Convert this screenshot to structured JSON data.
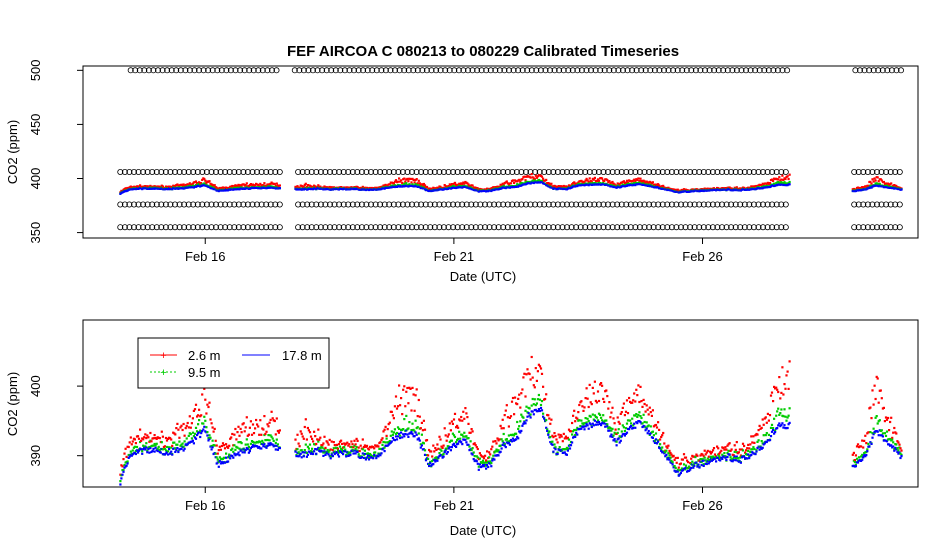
{
  "chart_data": [
    {
      "type": "scatter",
      "title": "FEF   AIRCOA  C    080213  to  080229   Calibrated Timeseries",
      "xlabel": "Date (UTC)",
      "ylabel": "CO2 (ppm)",
      "x_ticks": [
        {
          "x": "2008-02-16",
          "label": "Feb 16"
        },
        {
          "x": "2008-02-21",
          "label": "Feb 21"
        },
        {
          "x": "2008-02-26",
          "label": "Feb 26"
        }
      ],
      "y_ticks": [
        350,
        400,
        450,
        500
      ],
      "xlim": [
        "2008-02-13T13:00",
        "2008-03-01T08:00"
      ],
      "ylim": [
        345,
        504
      ],
      "grid": false,
      "gaps": [
        [
          "2008-02-17T16:00",
          "2008-02-17T19:00"
        ],
        [
          "2008-02-27T22:00",
          "2008-02-29T00:00"
        ]
      ],
      "data_start": "2008-02-14T07:00",
      "data_end": "2008-03-01T00:00",
      "standards": {
        "marker": "open circle",
        "color": "#000000",
        "levels_ppm": [
          500,
          406,
          376,
          355
        ],
        "level_start": {
          "500": "2008-02-14T12:00"
        }
      },
      "series": [
        {
          "name": "2.6 m",
          "color": "#ff0000"
        },
        {
          "name": "9.5 m",
          "color": "#00cc00"
        },
        {
          "name": "17.8 m",
          "color": "#0000ff"
        }
      ]
    },
    {
      "type": "scatter",
      "xlabel": "Date (UTC)",
      "ylabel": "CO2 (ppm)",
      "x_ticks": [
        {
          "x": "2008-02-16",
          "label": "Feb 16"
        },
        {
          "x": "2008-02-21",
          "label": "Feb 21"
        },
        {
          "x": "2008-02-26",
          "label": "Feb 26"
        }
      ],
      "y_ticks": [
        390,
        400
      ],
      "xlim": [
        "2008-02-13T13:00",
        "2008-03-01T08:00"
      ],
      "ylim": [
        385.5,
        409.5
      ],
      "grid": false,
      "legend": {
        "position": "top-left",
        "entries": [
          "2.6 m",
          "9.5 m",
          "17.8 m"
        ]
      },
      "series": [
        {
          "name": "2.6 m",
          "color": "#ff0000"
        },
        {
          "name": "9.5 m",
          "color": "#00cc00"
        },
        {
          "name": "17.8 m",
          "color": "#0000ff"
        }
      ],
      "base_profile": {
        "x": [
          "2008-02-14T07:00",
          "2008-02-14T12:00",
          "2008-02-14T18:00",
          "2008-02-15T00:00",
          "2008-02-15T06:00",
          "2008-02-15T12:00",
          "2008-02-15T18:00",
          "2008-02-16T00:00",
          "2008-02-16T06:00",
          "2008-02-16T12:00",
          "2008-02-16T18:00",
          "2008-02-17T00:00",
          "2008-02-17T06:00",
          "2008-02-17T12:00",
          "2008-02-17T16:00",
          "2008-02-17T19:00",
          "2008-02-18T00:00",
          "2008-02-18T06:00",
          "2008-02-18T12:00",
          "2008-02-18T18:00",
          "2008-02-19T00:00",
          "2008-02-19T06:00",
          "2008-02-19T12:00",
          "2008-02-19T18:00",
          "2008-02-20T00:00",
          "2008-02-20T06:00",
          "2008-02-20T12:00",
          "2008-02-20T18:00",
          "2008-02-21T00:00",
          "2008-02-21T06:00",
          "2008-02-21T12:00",
          "2008-02-21T18:00",
          "2008-02-22T00:00",
          "2008-02-22T06:00",
          "2008-02-22T12:00",
          "2008-02-22T18:00",
          "2008-02-23T00:00",
          "2008-02-23T06:00",
          "2008-02-23T12:00",
          "2008-02-23T18:00",
          "2008-02-24T00:00",
          "2008-02-24T06:00",
          "2008-02-24T12:00",
          "2008-02-24T18:00",
          "2008-02-25T00:00",
          "2008-02-25T06:00",
          "2008-02-25T12:00",
          "2008-02-25T18:00",
          "2008-02-26T00:00",
          "2008-02-26T06:00",
          "2008-02-26T12:00",
          "2008-02-26T18:00",
          "2008-02-27T00:00",
          "2008-02-27T06:00",
          "2008-02-27T12:00",
          "2008-02-27T18:00",
          "2008-02-27T22:00",
          "2008-02-29T00:00",
          "2008-02-29T06:00",
          "2008-02-29T12:00",
          "2008-02-29T18:00",
          "2008-03-01T00:00"
        ],
        "y": [
          386.5,
          390.5,
          391,
          391,
          390.8,
          391,
          392.5,
          394.5,
          389,
          390,
          391,
          391.5,
          392,
          391.5,
          null,
          390.5,
          390.5,
          391,
          390.2,
          390.5,
          390.5,
          390,
          390.3,
          392.5,
          394,
          393.5,
          389,
          390,
          392,
          392.5,
          388.5,
          389,
          392,
          393,
          396.5,
          397.5,
          391,
          390.5,
          394,
          395,
          395.5,
          392,
          394,
          395.5,
          393,
          390.5,
          387.5,
          388.5,
          389,
          389.5,
          390,
          389.5,
          390.5,
          392,
          395,
          395.5,
          null,
          388.5,
          390,
          394.5,
          392,
          390
        ],
        "spread": [
          1.2,
          1.5,
          1.5,
          1.5,
          1.5,
          2,
          3,
          4,
          1.5,
          2,
          3,
          2,
          3,
          2,
          null,
          1,
          3,
          1.5,
          1.2,
          1,
          1,
          1,
          1,
          3,
          5,
          4,
          1.5,
          1.5,
          3,
          3,
          1.2,
          1.2,
          3,
          4,
          5,
          4,
          1.5,
          1.5,
          3,
          3.5,
          4,
          2,
          3,
          3.5,
          2.5,
          1.2,
          1,
          1,
          1,
          1,
          1,
          1,
          1.5,
          3,
          5,
          7,
          null,
          1.2,
          2,
          5,
          2.5,
          1.2
        ]
      }
    }
  ]
}
